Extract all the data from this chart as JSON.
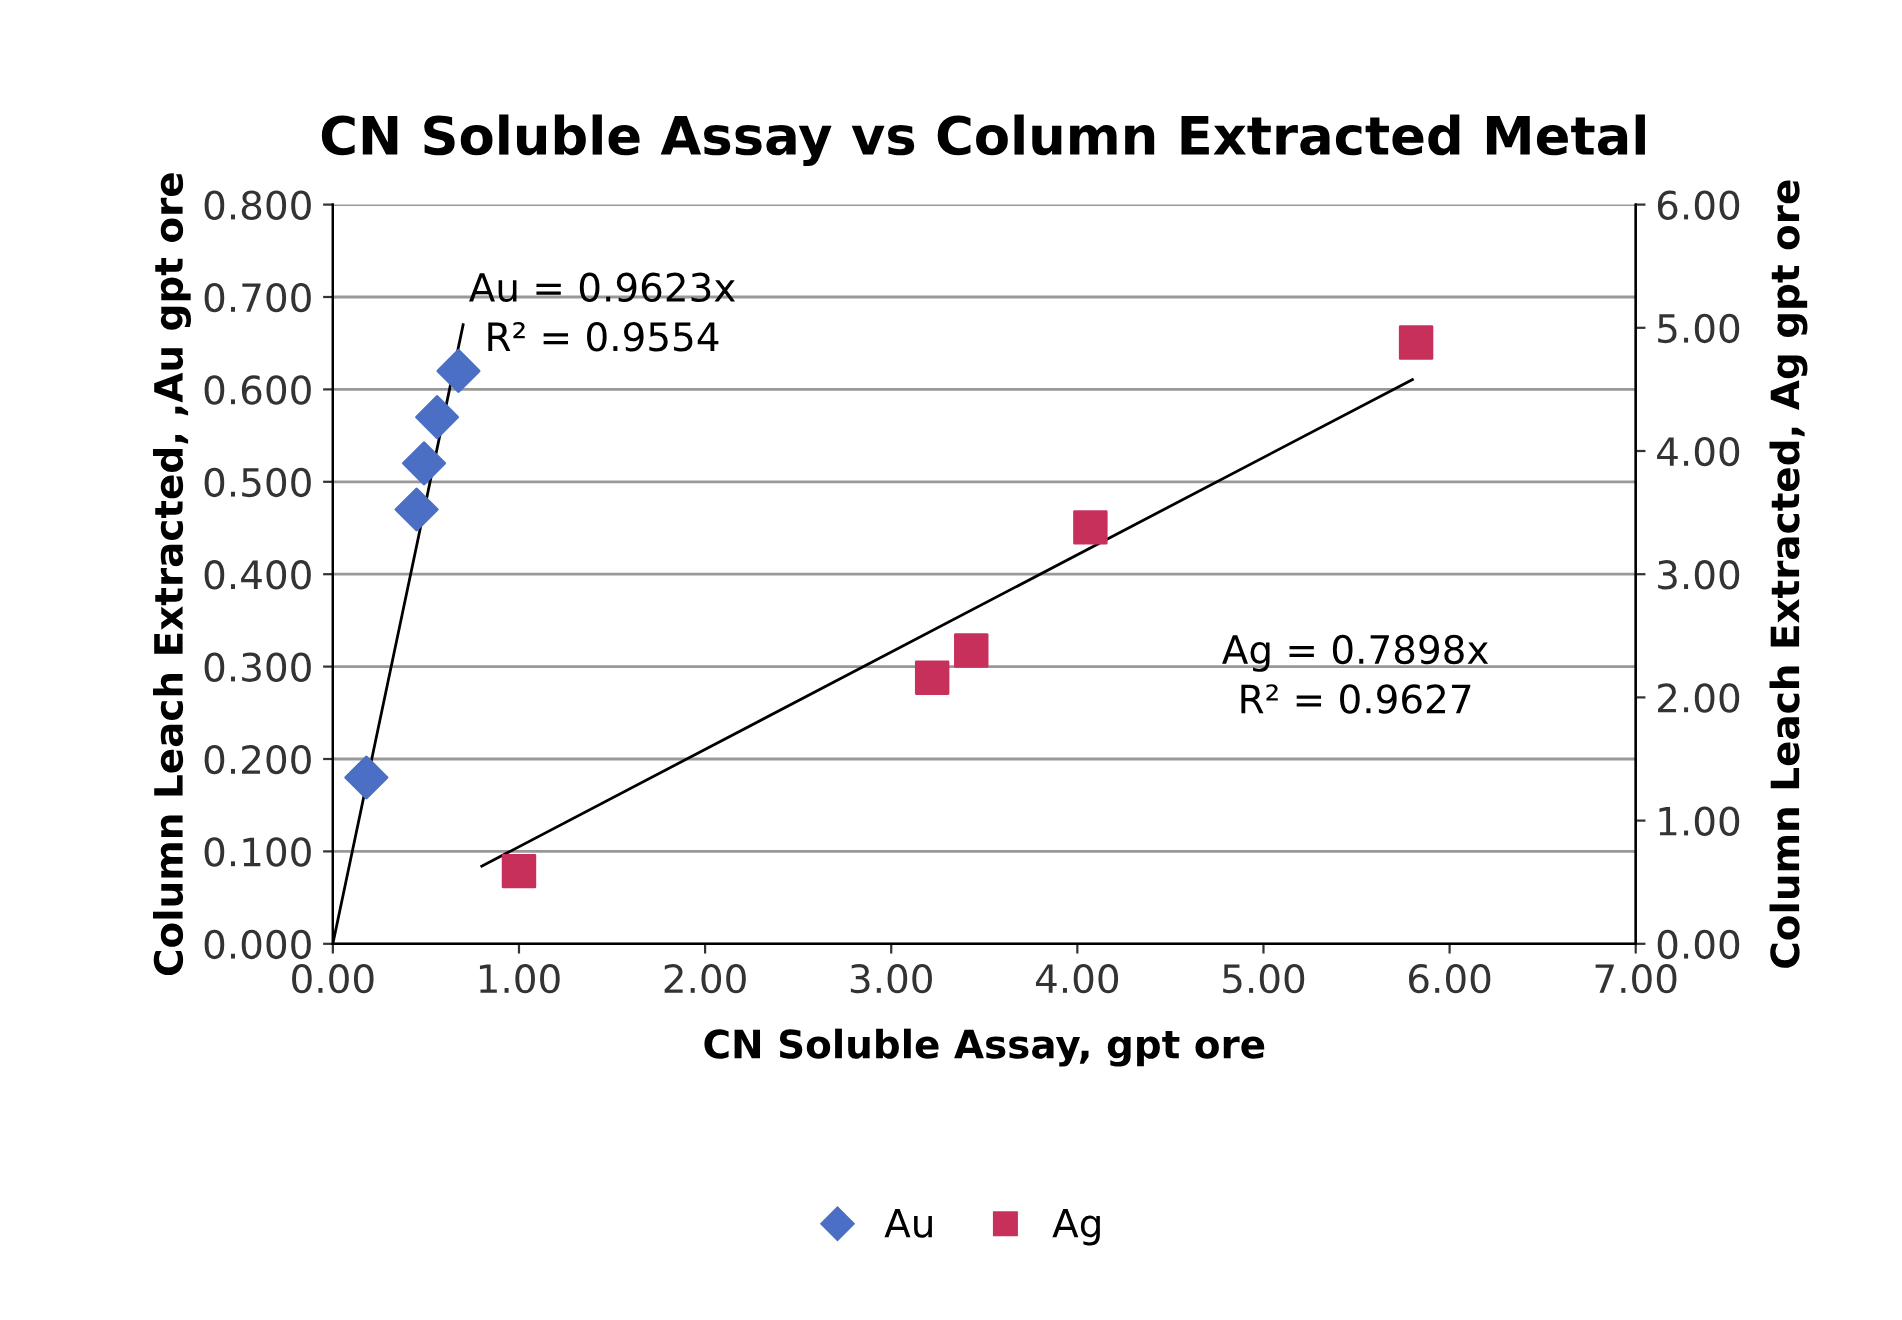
{
  "chart_data": {
    "type": "scatter",
    "title": "CN Soluble Assay vs Column Extracted Metal",
    "xlabel": "CN Soluble Assay, gpt ore",
    "ylabel": "Column Leach Extracted, ,Au gpt ore",
    "y2label": "Column Leach Extracted, Ag gpt ore",
    "series": [
      {
        "name": "Au",
        "marker": "diamond",
        "color": "#4a6fc4",
        "x": [
          0.18,
          0.45,
          0.49,
          0.56,
          0.675
        ],
        "values": [
          0.18,
          0.47,
          0.52,
          0.57,
          0.62
        ]
      },
      {
        "name": "Ag",
        "marker": "square",
        "color": "#c8305c",
        "axis": "y2",
        "x": [
          1.0,
          3.22,
          3.43,
          4.07,
          5.82
        ],
        "values": [
          0.59,
          2.16,
          2.38,
          3.38,
          4.88
        ]
      },
      {
        "type": "line",
        "color": "#000000",
        "x": [
          0.0,
          0.7
        ],
        "values": [
          0.0,
          0.67
        ]
      },
      {
        "type": "line",
        "color": "#000000",
        "axis": "y2",
        "x": [
          0.8,
          5.8
        ],
        "values": [
          0.63,
          4.58
        ]
      }
    ],
    "annotations": [
      "Au = 0.9623x\nR² = 0.9554",
      "Ag = 0.7898x\nR² = 0.9627"
    ],
    "xlim": [
      0,
      7
    ],
    "ylim": [
      0,
      0.8
    ],
    "y2lim": [
      0,
      6
    ],
    "xticks": [
      {
        "value": 0,
        "label": "0.00"
      },
      {
        "value": 1,
        "label": "1.00"
      },
      {
        "value": 2,
        "label": "2.00"
      },
      {
        "value": 3,
        "label": "3.00"
      },
      {
        "value": 4,
        "label": "4.00"
      },
      {
        "value": 5,
        "label": "5.00"
      },
      {
        "value": 6,
        "label": "6.00"
      },
      {
        "value": 7,
        "label": "7.00"
      }
    ],
    "yticks": [
      {
        "value": 0,
        "label": "0.000"
      },
      {
        "value": 0.1,
        "label": "0.100"
      },
      {
        "value": 0.2,
        "label": "0.200"
      },
      {
        "value": 0.3,
        "label": "0.300"
      },
      {
        "value": 0.4,
        "label": "0.400"
      },
      {
        "value": 0.5,
        "label": "0.500"
      },
      {
        "value": 0.6,
        "label": "0.600"
      },
      {
        "value": 0.7,
        "label": "0.700"
      },
      {
        "value": 0.8,
        "label": "0.800"
      }
    ],
    "y2ticks": [
      {
        "value": 0,
        "label": "0.00"
      },
      {
        "value": 1,
        "label": "1.00"
      },
      {
        "value": 2,
        "label": "2.00"
      },
      {
        "value": 3,
        "label": "3.00"
      },
      {
        "value": 4,
        "label": "4.00"
      },
      {
        "value": 5,
        "label": "5.00"
      },
      {
        "value": 6,
        "label": "6.00"
      }
    ],
    "grid": "y",
    "legend": "bottom"
  }
}
